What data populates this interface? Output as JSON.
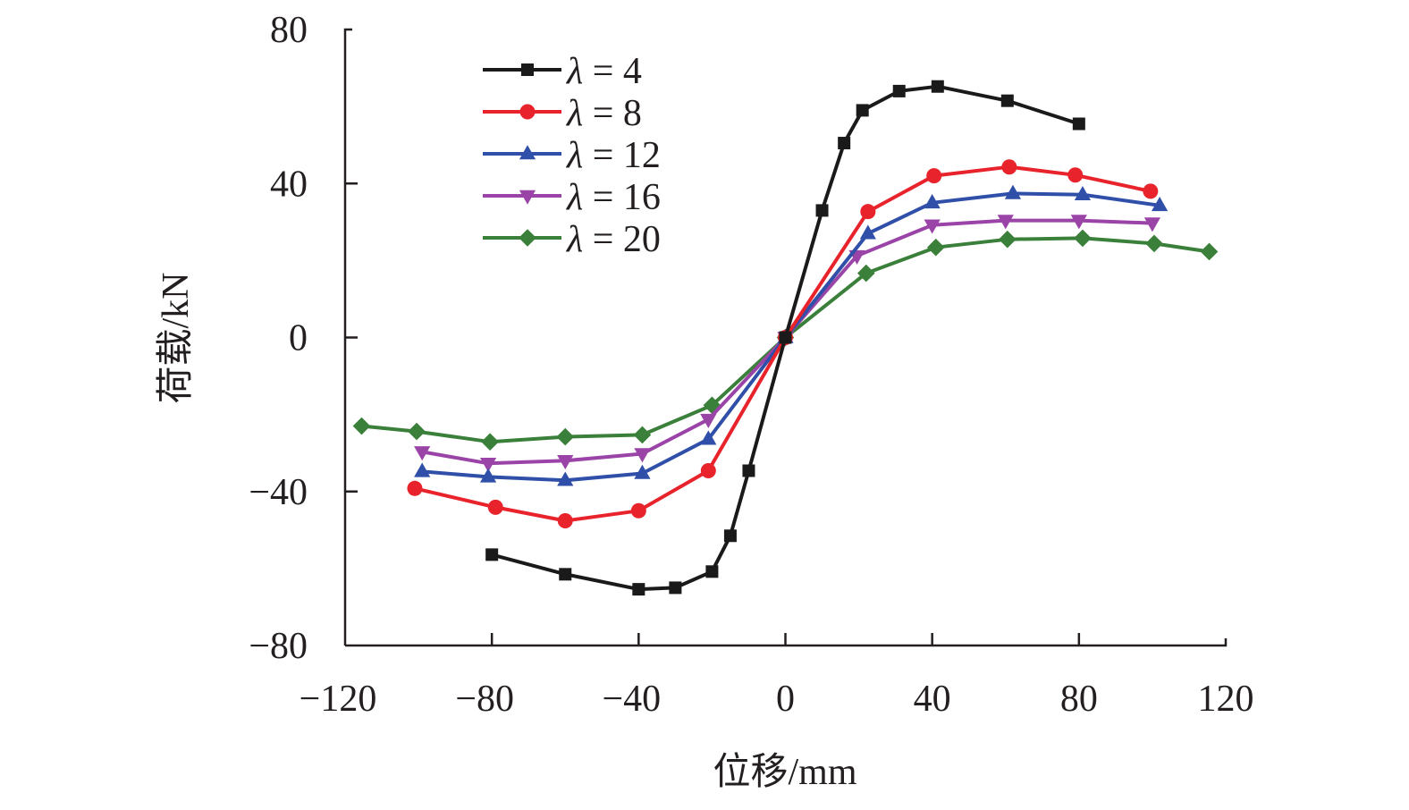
{
  "chart_data": {
    "type": "line",
    "title": "",
    "xlabel": "位移/mm",
    "ylabel": "荷载/kN",
    "xlim": [
      -120,
      120
    ],
    "ylim": [
      -80,
      80
    ],
    "xticks": [
      -120,
      -80,
      -40,
      0,
      40,
      80,
      120
    ],
    "yticks": [
      -80,
      -40,
      0,
      40,
      80
    ],
    "xtick_labels": [
      "−120",
      "−80",
      "−40",
      "0",
      "40",
      "80",
      "120"
    ],
    "ytick_labels": [
      "−80",
      "−40",
      "0",
      "40",
      "80"
    ],
    "grid": false,
    "legend_position": "top-left",
    "series": [
      {
        "name": "λ = 4",
        "symbol": "λ",
        "value_label": "= 4",
        "color": "#1a1a1a",
        "marker": "square",
        "x": [
          -80,
          -60,
          -40,
          -30,
          -20,
          -15,
          -10,
          0,
          10,
          16,
          21,
          31,
          41.5,
          60.5,
          80
        ],
        "y": [
          -56.4,
          -61.5,
          -65.4,
          -65.0,
          -60.8,
          -51.5,
          -34.6,
          0,
          33.0,
          50.5,
          59.0,
          64.0,
          65.2,
          61.5,
          55.5
        ]
      },
      {
        "name": "λ = 8",
        "symbol": "λ",
        "value_label": "= 8",
        "color": "#e8232b",
        "marker": "circle",
        "x": [
          -101,
          -79,
          -60,
          -40,
          -21,
          0,
          22.5,
          40.5,
          61,
          79,
          99.5
        ],
        "y": [
          -39.2,
          -44.1,
          -47.6,
          -45.0,
          -34.6,
          0,
          32.7,
          42.0,
          44.3,
          42.2,
          38.0
        ]
      },
      {
        "name": "λ = 12",
        "symbol": "λ",
        "value_label": "= 12",
        "color": "#2f4fa8",
        "marker": "triangle-up",
        "x": [
          -99,
          -81,
          -60,
          -39,
          -21,
          0,
          22.5,
          40,
          62,
          81,
          102
        ],
        "y": [
          -34.8,
          -36.2,
          -37.1,
          -35.3,
          -26.4,
          0,
          27.0,
          35.0,
          37.4,
          37.1,
          34.3
        ]
      },
      {
        "name": "λ = 16",
        "symbol": "λ",
        "value_label": "= 16",
        "color": "#9b44a8",
        "marker": "triangle-down",
        "x": [
          -99,
          -81,
          -60,
          -39,
          -21,
          0,
          19.5,
          40,
          60,
          80,
          100
        ],
        "y": [
          -29.7,
          -32.7,
          -32.0,
          -30.2,
          -21.3,
          0,
          21.2,
          29.2,
          30.4,
          30.4,
          29.7
        ]
      },
      {
        "name": "λ = 20",
        "symbol": "λ",
        "value_label": "= 20",
        "color": "#3a7f3a",
        "marker": "diamond",
        "x": [
          -115.5,
          -100.5,
          -80.5,
          -60,
          -39,
          -20,
          0,
          22,
          41,
          60.5,
          81,
          100.5,
          115.5
        ],
        "y": [
          -23.0,
          -24.4,
          -27.1,
          -25.8,
          -25.3,
          -17.6,
          0,
          16.7,
          23.4,
          25.5,
          25.8,
          24.4,
          22.3
        ]
      }
    ]
  }
}
